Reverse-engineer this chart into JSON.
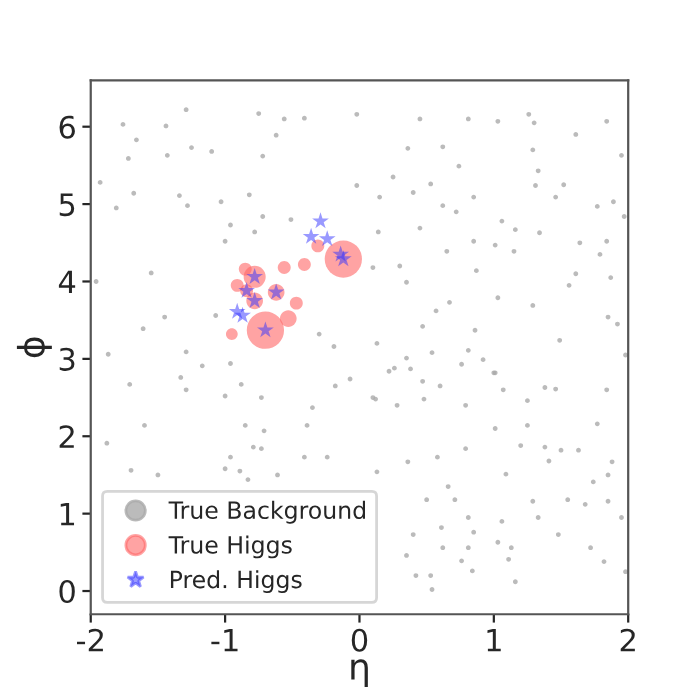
{
  "chart_data": {
    "type": "scatter",
    "xlabel": "η",
    "ylabel": "ϕ",
    "xlim": [
      -2,
      2
    ],
    "ylim": [
      -0.3,
      6.6
    ],
    "xticks": [
      -2,
      -1,
      0,
      1,
      2
    ],
    "yticks": [
      0,
      1,
      2,
      3,
      4,
      5,
      6
    ],
    "grid": false,
    "legend": "bottom left",
    "series": [
      {
        "name": "True Background",
        "color": "#aaaaaa",
        "type": "scatter",
        "marker": "circle",
        "x": [
          -1.29,
          -1.76,
          -1.44,
          -0.75,
          -0.56,
          -0.41,
          -0.02,
          -0.62,
          -1.66,
          -1.25,
          -1.1,
          -1.43,
          -1.72,
          -0.72,
          -1.93,
          -0.02,
          -1.68,
          -1.34,
          -0.82,
          0.15,
          -1.81,
          -1.28,
          -1.03,
          -0.72,
          -0.96,
          -0.51,
          0.14,
          -1.0,
          -0.78,
          -1.55,
          -1.96,
          0.1,
          -1.45,
          -1.07,
          -1.61,
          -1.29,
          -1.87,
          -0.19,
          0.13,
          -0.3,
          -1.17,
          -0.96,
          -1.33,
          0.45,
          0.81,
          1.03,
          1.26,
          1.3,
          1.84,
          1.61,
          0.36,
          0.62,
          1.95,
          0.74,
          0.25,
          0.53,
          1.29,
          1.33,
          0.4,
          0.85,
          1.31,
          1.52,
          1.46,
          0.62,
          0.72,
          1.77,
          1.89,
          1.97,
          1.06,
          0.45,
          1.16,
          0.85,
          1.01,
          1.34,
          1.64,
          1.84,
          0.65,
          1.15,
          1.79,
          0.3,
          0.35,
          0.87,
          1.61,
          1.87,
          1.56,
          1.03,
          0.67,
          1.29,
          0.57,
          0.47,
          0.86,
          1.85,
          1.92,
          1.49,
          0.35,
          0.54,
          0.81,
          0.92,
          0.26,
          0.38,
          1.01,
          1.98,
          -1.71,
          -1.29,
          -1.0,
          -0.88,
          -0.18,
          -0.07,
          0.1,
          -0.73,
          -1.88,
          -1.6,
          -0.35,
          -0.85,
          -0.71,
          -0.39,
          -0.79,
          -0.73,
          -0.96,
          -1.0,
          -0.89,
          -0.83,
          -0.61,
          -0.41,
          -0.24,
          -1.5,
          -1.7,
          0.13,
          0.22,
          0.47,
          0.6,
          0.76,
          1.0,
          0.12,
          0.28,
          0.48,
          0.79,
          1.07,
          1.25,
          1.38,
          1.46,
          1.84,
          1.01,
          1.25,
          1.2,
          1.38,
          1.5,
          0.79,
          1.63,
          1.77,
          0.58,
          0.36,
          1.41,
          1.88,
          1.85,
          1.74,
          1.09,
          0.66,
          0.71,
          0.5,
          1.29,
          1.55,
          1.68,
          1.85,
          1.95,
          1.33,
          0.81,
          1.06,
          0.61,
          0.85,
          0.4,
          1.48,
          0.62,
          0.81,
          1.03,
          1.13,
          1.72,
          0.35,
          0.76,
          1.11,
          0.84,
          0.42,
          0.53,
          1.82,
          1.98,
          1.16,
          0.54
        ],
        "values": [
          6.22,
          6.03,
          6.01,
          6.17,
          6.1,
          6.11,
          6.16,
          5.89,
          5.83,
          5.73,
          5.68,
          5.63,
          5.59,
          5.62,
          5.28,
          5.24,
          5.14,
          5.11,
          5.12,
          5.09,
          4.95,
          4.98,
          5.03,
          4.84,
          4.73,
          4.8,
          4.64,
          4.52,
          4.64,
          4.11,
          4.0,
          4.18,
          3.54,
          3.56,
          3.39,
          3.09,
          3.06,
          3.16,
          3.2,
          3.32,
          2.91,
          2.94,
          2.76,
          6.1,
          6.1,
          6.07,
          6.16,
          6.05,
          6.07,
          5.9,
          5.72,
          5.74,
          5.63,
          5.49,
          5.35,
          5.26,
          5.7,
          5.43,
          5.15,
          5.09,
          5.24,
          5.25,
          5.09,
          4.98,
          4.9,
          4.97,
          5.03,
          4.84,
          4.78,
          4.69,
          4.67,
          4.52,
          4.47,
          4.63,
          4.5,
          4.52,
          4.39,
          4.39,
          4.35,
          4.2,
          3.99,
          4.14,
          4.1,
          4.05,
          3.95,
          3.79,
          3.73,
          3.69,
          3.62,
          3.42,
          3.37,
          3.54,
          3.45,
          3.24,
          3.01,
          3.08,
          3.11,
          2.99,
          2.88,
          2.87,
          2.82,
          3.05,
          2.67,
          2.6,
          2.52,
          2.67,
          2.65,
          2.74,
          2.5,
          2.5,
          1.91,
          2.14,
          2.37,
          2.14,
          2.07,
          2.14,
          1.86,
          1.84,
          1.73,
          1.58,
          1.55,
          1.44,
          1.5,
          1.73,
          1.73,
          1.5,
          1.56,
          1.54,
          2.84,
          2.71,
          2.65,
          2.93,
          2.82,
          2.48,
          2.4,
          2.48,
          2.4,
          2.6,
          2.46,
          2.63,
          2.61,
          2.6,
          2.1,
          2.14,
          1.88,
          1.86,
          1.82,
          1.84,
          1.82,
          2.16,
          1.73,
          1.67,
          1.68,
          1.67,
          1.5,
          1.41,
          1.51,
          1.35,
          1.18,
          1.18,
          1.16,
          1.18,
          1.12,
          1.16,
          0.95,
          0.95,
          0.95,
          0.9,
          0.82,
          0.76,
          0.73,
          0.73,
          0.56,
          0.56,
          0.63,
          0.56,
          0.56,
          0.46,
          0.39,
          0.41,
          0.26,
          0.2,
          0.2,
          0.38,
          0.25,
          0.12,
          0.02
        ]
      },
      {
        "name": "True Higgs",
        "color": "#ff6666",
        "type": "bubble",
        "marker": "circle",
        "x": [
          -0.12,
          -0.7,
          -0.78,
          -0.62,
          -0.78,
          -0.56,
          -0.41,
          -0.85,
          -0.91,
          -0.84,
          -0.47,
          -0.95,
          -0.31,
          -0.53
        ],
        "values": [
          4.29,
          3.37,
          4.06,
          3.86,
          3.75,
          4.18,
          4.22,
          4.16,
          3.95,
          3.88,
          3.72,
          3.32,
          4.46,
          3.52
        ],
        "sizes": [
          1,
          1,
          0.35,
          0.2,
          0.2,
          0.12,
          0.12,
          0.12,
          0.12,
          0.12,
          0.12,
          0.1,
          0.12,
          0.2
        ]
      },
      {
        "name": "Pred. Higgs",
        "color": "#3333ff",
        "type": "scatter",
        "marker": "star",
        "x": [
          -0.29,
          -0.36,
          -0.24,
          -0.12,
          -0.14,
          -0.78,
          -0.84,
          -0.62,
          -0.78,
          -0.91,
          -0.87,
          -0.7
        ],
        "values": [
          4.78,
          4.58,
          4.55,
          4.29,
          4.35,
          4.06,
          3.88,
          3.86,
          3.75,
          3.61,
          3.56,
          3.37
        ]
      }
    ]
  }
}
